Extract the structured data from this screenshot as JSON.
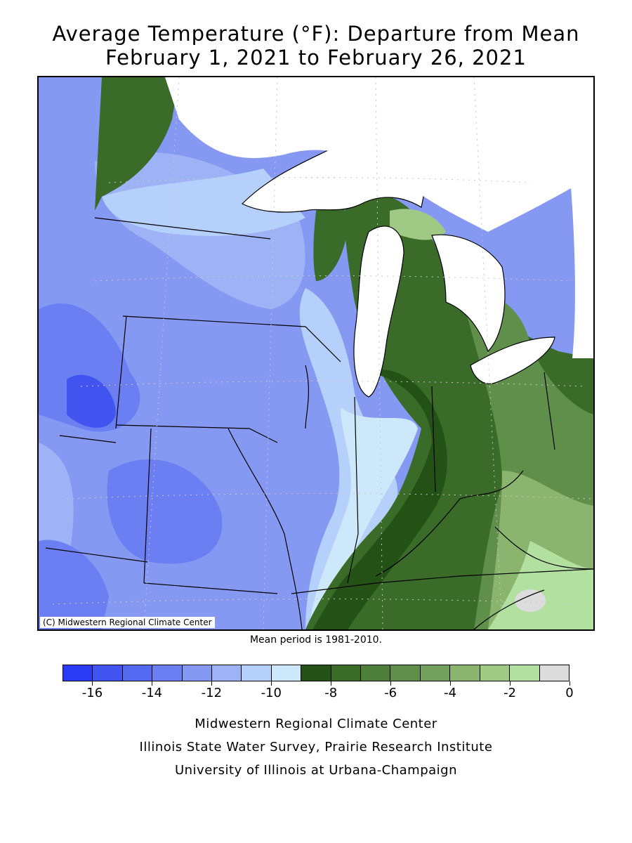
{
  "title_line1": "Average Temperature (°F): Departure from Mean",
  "title_line2": "February 1, 2021 to February 26, 2021",
  "copyright": "(C) Midwestern Regional Climate Center",
  "mean_period": "Mean period is 1981-2010.",
  "legend": {
    "colors": [
      "#2b3bf5",
      "#4154f0",
      "#5468f0",
      "#6b7ff2",
      "#8598f2",
      "#9db3f5",
      "#b5d0fa",
      "#cde8fb",
      "#245216",
      "#3a6b29",
      "#4d7f3a",
      "#5f8f4b",
      "#74a05d",
      "#8bb56f",
      "#9fc985",
      "#b2e0a0",
      "#dcdcdc"
    ],
    "tick_labels": [
      "-16",
      "-14",
      "-12",
      "-10",
      "-8",
      "-6",
      "-4",
      "-2",
      "0"
    ]
  },
  "footer": {
    "line1": "Midwestern Regional Climate Center",
    "line2": "Illinois State Water Survey, Prairie Research Institute",
    "line3": "University of Illinois at Urbana-Champaign"
  },
  "colors": {
    "lake": "#ffffff",
    "border": "#000000",
    "graticule": "#c8c8c8"
  }
}
